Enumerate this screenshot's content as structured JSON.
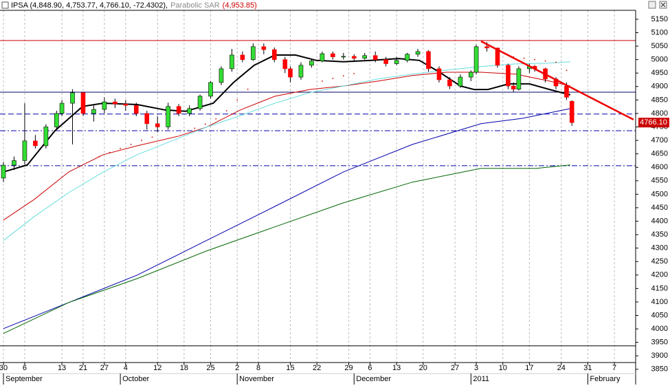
{
  "chart_data": {
    "type": "candlestick",
    "title": "IPSA (4,848.90, 4,753.77, 4,766.10, -72.4302),",
    "indicator_label": "Parabolic SAR",
    "indicator_value": "(4,953.85)",
    "x": [
      0,
      2,
      4,
      6,
      8,
      10,
      11,
      13,
      15,
      17,
      19,
      21,
      23,
      25,
      27,
      29,
      31,
      33,
      35,
      37,
      39,
      41,
      43,
      45,
      47,
      49,
      51,
      53,
      54,
      56,
      58,
      60,
      62,
      64,
      66,
      68,
      70,
      72,
      74,
      76,
      78,
      80,
      82,
      84,
      86,
      88,
      89,
      91,
      93,
      95,
      96,
      97,
      99,
      100,
      102,
      104,
      106,
      107
    ],
    "open": [
      4560,
      4608,
      4625,
      4698,
      4680,
      4750,
      4800,
      4838,
      4877,
      4800,
      4815,
      4843,
      4835,
      4830,
      4800,
      4762,
      4750,
      4826,
      4800,
      4818,
      4864,
      4915,
      4966,
      5017,
      5000,
      5048,
      5037,
      5000,
      4966,
      4935,
      4979,
      4995,
      5022,
      5010,
      5012,
      5005,
      5015,
      5000,
      4985,
      4997,
      5020,
      5030,
      4966,
      4925,
      4902,
      4935,
      4953,
      5048,
      5043,
      4979,
      4902,
      4890,
      4966,
      4975,
      4966,
      4928,
      4902,
      4845
    ],
    "high": [
      4620,
      4640,
      4838,
      4720,
      4760,
      4810,
      4850,
      4890,
      4880,
      4830,
      4860,
      4855,
      4850,
      4840,
      4810,
      4790,
      4840,
      4835,
      4830,
      4870,
      4920,
      4975,
      5040,
      5030,
      5060,
      5060,
      5045,
      5010,
      4975,
      4990,
      5000,
      5030,
      5030,
      5025,
      5020,
      5025,
      5030,
      5010,
      5010,
      5025,
      5040,
      5035,
      4975,
      4935,
      4945,
      4960,
      5055,
      5065,
      5045,
      4985,
      4915,
      4975,
      4985,
      4980,
      4970,
      4935,
      4915,
      4848.9
    ],
    "low": [
      4545,
      4590,
      4610,
      4670,
      4670,
      4740,
      4790,
      4685,
      4790,
      4770,
      4800,
      4820,
      4810,
      4790,
      4740,
      4730,
      4740,
      4790,
      4790,
      4810,
      4855,
      4905,
      4955,
      4990,
      4995,
      5020,
      4990,
      4950,
      4915,
      4925,
      4970,
      4990,
      5000,
      5000,
      4995,
      5000,
      4990,
      4975,
      4980,
      4990,
      5010,
      4955,
      4915,
      4890,
      4895,
      4920,
      4945,
      5030,
      4970,
      4890,
      4880,
      4885,
      4950,
      4955,
      4915,
      4890,
      4850,
      4753.77
    ],
    "close": [
      4608,
      4625,
      4698,
      4680,
      4750,
      4800,
      4838,
      4877,
      4800,
      4815,
      4843,
      4835,
      4830,
      4800,
      4762,
      4750,
      4826,
      4800,
      4818,
      4864,
      4915,
      4966,
      5017,
      5000,
      5048,
      5037,
      5000,
      4966,
      4935,
      4979,
      4995,
      5022,
      5010,
      5012,
      5005,
      5015,
      5000,
      4985,
      4997,
      5020,
      5030,
      4966,
      4925,
      4902,
      4935,
      4953,
      5048,
      5043,
      4979,
      4902,
      4890,
      4966,
      4975,
      4966,
      4928,
      4902,
      4860,
      4766.1
    ],
    "up_color": "#33dd33",
    "down_color": "#ff0000",
    "series": [
      {
        "color": "#000000",
        "width": 2,
        "x": [
          0,
          4.5,
          9.7,
          14.9,
          18.8,
          25.2,
          30.4,
          34.3,
          39.5,
          43.3,
          47.2,
          51.1,
          55,
          58.9,
          64,
          69.2,
          74.4,
          78.3,
          82.1,
          86,
          88.6,
          91.2,
          95.1,
          99,
          102.8,
          106.7
        ],
        "values": [
          4583,
          4609,
          4736,
          4826,
          4838,
          4833,
          4813,
          4808,
          4838,
          4915,
          4979,
          5017,
          5017,
          4997,
          4992,
          4997,
          5004,
          4997,
          4953,
          4902,
          4889,
          4889,
          4910,
          4910,
          4889,
          4869
        ]
      },
      {
        "color": "#cc0000",
        "width": 1,
        "x": [
          0,
          5.8,
          12.3,
          18.8,
          25.2,
          33,
          38.2,
          44.6,
          51.1,
          57.6,
          64,
          70.5,
          77,
          83.4,
          89.9,
          96.4,
          102.8,
          106.7
        ],
        "values": [
          4404,
          4481,
          4583,
          4647,
          4680,
          4716,
          4749,
          4813,
          4864,
          4889,
          4902,
          4920,
          4941,
          4953,
          4953,
          4946,
          4920,
          4902
        ]
      },
      {
        "color": "#66dddd",
        "width": 1,
        "x": [
          0,
          5.8,
          12.3,
          18.8,
          25.2,
          31.7,
          38.2,
          44.6,
          51.1,
          57.6,
          64,
          70.5,
          77,
          83.4,
          89.9,
          96.4,
          102.8,
          106.7
        ],
        "values": [
          4328,
          4417,
          4506,
          4583,
          4647,
          4698,
          4749,
          4792,
          4838,
          4877,
          4902,
          4928,
          4946,
          4961,
          4974,
          4984,
          4987,
          4992
        ]
      },
      {
        "color": "#0000aa",
        "width": 1,
        "x": [
          0,
          12.3,
          25.2,
          38.2,
          51.1,
          64,
          77,
          89.9,
          97.7,
          106.7
        ],
        "values": [
          4001,
          4098,
          4200,
          4328,
          4455,
          4583,
          4685,
          4762,
          4782,
          4818
        ]
      },
      {
        "color": "#006600",
        "width": 1,
        "x": [
          0,
          12.3,
          25.2,
          38.2,
          51.1,
          64,
          77,
          89.9,
          100.3,
          106.7
        ],
        "values": [
          3983,
          4098,
          4187,
          4289,
          4379,
          4468,
          4545,
          4596,
          4596,
          4609
        ]
      }
    ],
    "sar": {
      "color": "#cc0000",
      "x": [
        18,
        20,
        22,
        24,
        26,
        28,
        36,
        38,
        40,
        42,
        44,
        46,
        60,
        62,
        64,
        66,
        96,
        98,
        100,
        102,
        104,
        106
      ],
      "values": [
        4640,
        4655,
        4670,
        4685,
        4700,
        4712,
        4745,
        4760,
        4780,
        4810,
        4850,
        4890,
        4920,
        4930,
        4940,
        4948,
        5010,
        5005,
        5000,
        4995,
        4990,
        4960
      ]
    },
    "hlines": [
      {
        "value": 5071,
        "color": "#cc0000",
        "style": "solid"
      },
      {
        "value": 4879,
        "color": "#000066",
        "style": "solid"
      },
      {
        "value": 4798,
        "color": "#0000aa",
        "style": "dashed"
      },
      {
        "value": 4736,
        "color": "#0000aa",
        "style": "dashdot"
      },
      {
        "value": 4606,
        "color": "#0000aa",
        "style": "dashdot"
      },
      {
        "value": 3937,
        "color": "#000000",
        "style": "solid"
      }
    ],
    "trendline": {
      "color": "#ee0000",
      "x": [
        89.9,
        118.6
      ],
      "values": [
        5068,
        4777
      ]
    },
    "last_value": 4766.1,
    "last_value_label": "4766.10",
    "xlim": [
      -0.65,
      119
    ],
    "ylim": [
      3829,
      5183
    ],
    "yticks": [
      3850,
      3900,
      3950,
      4000,
      4050,
      4100,
      4150,
      4200,
      4250,
      4300,
      4350,
      4400,
      4450,
      4500,
      4550,
      4600,
      4650,
      4700,
      4750,
      4800,
      4850,
      4900,
      4950,
      5000,
      5050,
      5100,
      5150
    ],
    "xticks": [
      {
        "value": 0,
        "label": "30"
      },
      {
        "value": 4,
        "label": "6"
      },
      {
        "value": 11,
        "label": "13"
      },
      {
        "value": 15,
        "label": "21"
      },
      {
        "value": 19,
        "label": "27"
      },
      {
        "value": 23,
        "label": "4"
      },
      {
        "value": 29,
        "label": "12"
      },
      {
        "value": 34,
        "label": "18"
      },
      {
        "value": 39,
        "label": "25"
      },
      {
        "value": 44,
        "label": "2"
      },
      {
        "value": 48,
        "label": "8"
      },
      {
        "value": 54,
        "label": "15"
      },
      {
        "value": 59,
        "label": "22"
      },
      {
        "value": 65,
        "label": "29"
      },
      {
        "value": 69,
        "label": "6"
      },
      {
        "value": 74,
        "label": "13"
      },
      {
        "value": 79,
        "label": "20"
      },
      {
        "value": 85,
        "label": "27"
      },
      {
        "value": 89,
        "label": "3"
      },
      {
        "value": 94,
        "label": "10"
      },
      {
        "value": 99,
        "label": "17"
      },
      {
        "value": 105,
        "label": "24"
      },
      {
        "value": 110,
        "label": "31"
      },
      {
        "value": 115,
        "label": "7"
      }
    ],
    "month_ticks": [
      {
        "value": 0,
        "label": "September"
      },
      {
        "value": 22,
        "label": "October"
      },
      {
        "value": 44,
        "label": "November"
      },
      {
        "value": 66,
        "label": "December"
      },
      {
        "value": 88,
        "label": "2011"
      },
      {
        "value": 110,
        "label": "February"
      }
    ],
    "grid": true
  }
}
